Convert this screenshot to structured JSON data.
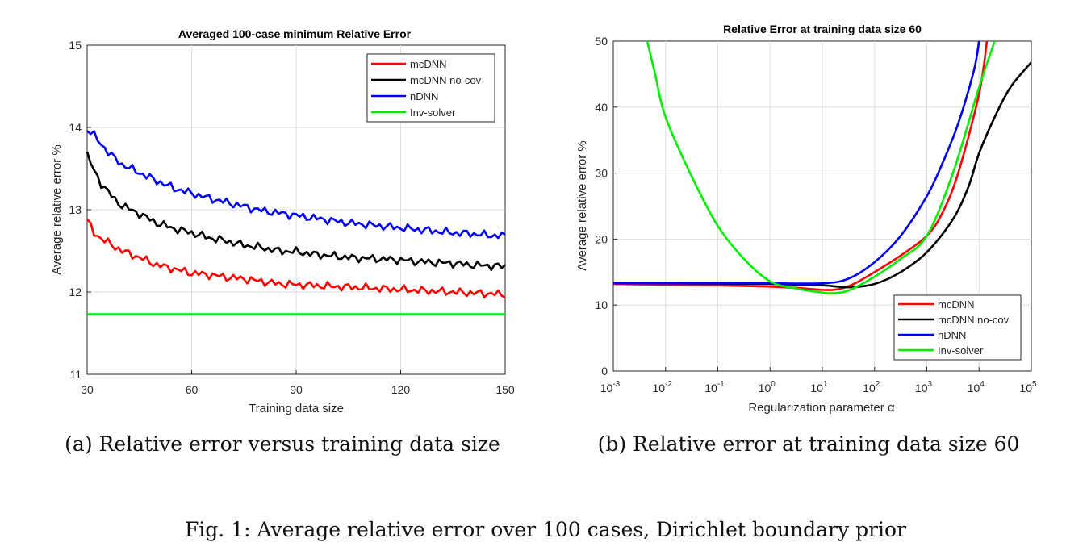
{
  "figure_caption": "Fig. 1: Average relative error over 100 cases, Dirichlet boundary prior",
  "chart_data": [
    {
      "type": "line",
      "title": "Averaged 100-case minimum Relative Error",
      "xlabel": "Training data size",
      "ylabel": "Average relative error %",
      "xlim": [
        30,
        150
      ],
      "ylim": [
        11,
        15
      ],
      "xticks": [
        30,
        60,
        90,
        120,
        150
      ],
      "yticks": [
        11,
        12,
        13,
        14,
        15
      ],
      "grid": true,
      "legend_position": "top-right",
      "caption": "(a) Relative error versus training data size",
      "series": [
        {
          "name": "mcDNN",
          "color": "#ff0000",
          "x": [
            30,
            32,
            34,
            36,
            38,
            40,
            45,
            50,
            55,
            60,
            65,
            70,
            75,
            80,
            85,
            90,
            95,
            100,
            105,
            110,
            115,
            120,
            125,
            130,
            135,
            140,
            145,
            150
          ],
          "y": [
            12.87,
            12.72,
            12.65,
            12.6,
            12.55,
            12.5,
            12.42,
            12.33,
            12.28,
            12.23,
            12.21,
            12.18,
            12.16,
            12.13,
            12.1,
            12.09,
            12.08,
            12.07,
            12.06,
            12.05,
            12.04,
            12.03,
            12.02,
            12.01,
            12.0,
            11.99,
            11.98,
            11.97
          ]
        },
        {
          "name": "mcDNN no-cov",
          "color": "#000000",
          "x": [
            30,
            32,
            34,
            36,
            38,
            40,
            45,
            50,
            55,
            60,
            65,
            70,
            75,
            80,
            85,
            90,
            95,
            100,
            105,
            110,
            115,
            120,
            125,
            130,
            135,
            140,
            145,
            150
          ],
          "y": [
            13.67,
            13.47,
            13.32,
            13.22,
            13.12,
            13.05,
            12.95,
            12.84,
            12.77,
            12.72,
            12.66,
            12.62,
            12.57,
            12.54,
            12.5,
            12.49,
            12.46,
            12.44,
            12.42,
            12.41,
            12.4,
            12.39,
            12.37,
            12.36,
            12.35,
            12.33,
            12.32,
            12.31
          ]
        },
        {
          "name": "nDNN",
          "color": "#0000ff",
          "x": [
            30,
            32,
            34,
            36,
            38,
            40,
            45,
            50,
            55,
            60,
            65,
            70,
            75,
            80,
            85,
            90,
            95,
            100,
            105,
            110,
            115,
            120,
            125,
            130,
            135,
            140,
            145,
            150
          ],
          "y": [
            13.98,
            13.9,
            13.8,
            13.7,
            13.62,
            13.55,
            13.45,
            13.35,
            13.26,
            13.2,
            13.14,
            13.09,
            13.04,
            12.99,
            12.96,
            12.93,
            12.9,
            12.87,
            12.84,
            12.82,
            12.8,
            12.78,
            12.76,
            12.74,
            12.72,
            12.71,
            12.69,
            12.68
          ]
        },
        {
          "name": "Inv-solver",
          "color": "#00ee00",
          "x": [
            30,
            150
          ],
          "y": [
            11.73,
            11.73
          ]
        }
      ]
    },
    {
      "type": "line",
      "title": "Relative Error at training data size 60",
      "xlabel": "Regularization parameter α",
      "ylabel": "Average relative error %",
      "xscale": "log",
      "xlim": [
        0.001,
        100000
      ],
      "ylim": [
        0,
        50
      ],
      "xtick_exponents": [
        "-3",
        "-2",
        "-1",
        "0",
        "1",
        "2",
        "3",
        "4",
        "5"
      ],
      "yticks": [
        0,
        10,
        20,
        30,
        40,
        50
      ],
      "grid": true,
      "legend_position": "bottom-right",
      "caption": "(b) Relative error at training data size 60",
      "series": [
        {
          "name": "mcDNN",
          "color": "#ff0000",
          "logx": [
            -3,
            -2,
            -1,
            0,
            0.5,
            1,
            1.3,
            1.6,
            2,
            2.5,
            3,
            3.3,
            3.6,
            4,
            4.15
          ],
          "y": [
            13.2,
            13.1,
            13.0,
            12.8,
            12.6,
            12.3,
            12.4,
            13.2,
            15.0,
            17.5,
            20.5,
            24,
            30,
            42,
            50
          ]
        },
        {
          "name": "mcDNN no-cov",
          "color": "#000000",
          "logx": [
            -3,
            -2,
            -1,
            0,
            1,
            1.5,
            2,
            2.5,
            3,
            3.5,
            3.8,
            4,
            4.3,
            4.6,
            5
          ],
          "y": [
            13.3,
            13.3,
            13.25,
            13.2,
            13.0,
            12.7,
            13.2,
            15.0,
            18.0,
            23.0,
            28.0,
            33.0,
            38.5,
            43.0,
            46.8
          ]
        },
        {
          "name": "nDNN",
          "color": "#0000ff",
          "logx": [
            -3,
            -2,
            -1,
            0,
            1,
            1.5,
            2,
            2.5,
            3,
            3.3,
            3.6,
            3.9,
            4.0
          ],
          "y": [
            13.3,
            13.3,
            13.3,
            13.3,
            13.3,
            14.0,
            16.5,
            20.5,
            26.5,
            31.5,
            37.5,
            45.5,
            50
          ]
        },
        {
          "name": "Inv-solver",
          "color": "#00ee00",
          "logx": [
            -2.35,
            -2.2,
            -2,
            -1.5,
            -1,
            -0.5,
            0,
            0.5,
            1,
            1.2,
            1.5,
            2,
            2.5,
            3,
            3.5,
            4,
            4.3
          ],
          "y": [
            50,
            45,
            38.5,
            29.5,
            22.0,
            17.0,
            13.6,
            12.5,
            11.9,
            11.8,
            12.2,
            14.3,
            17.0,
            20.5,
            30,
            43,
            50
          ]
        }
      ]
    }
  ],
  "legend_labels": [
    "mcDNN",
    "mcDNN no-cov",
    "nDNN",
    "Inv-solver"
  ]
}
